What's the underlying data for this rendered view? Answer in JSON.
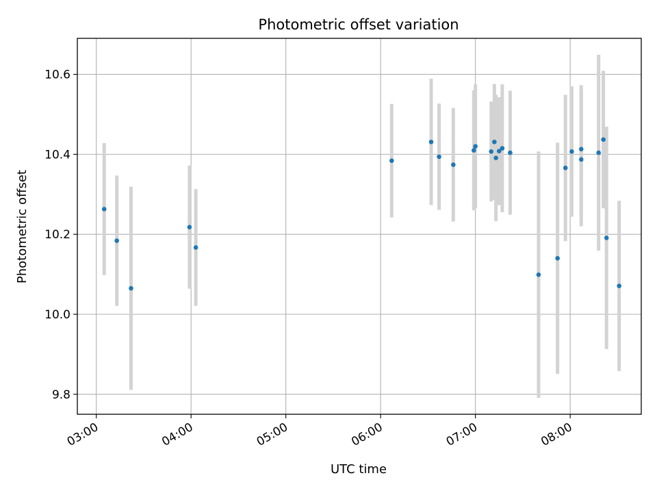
{
  "chart_data": {
    "type": "scatter",
    "title": "Photometric offset variation",
    "xlabel": "UTC time",
    "ylabel": "Photometric offset",
    "x_unit": "hours UTC",
    "xlim": [
      "02:48",
      "08:45"
    ],
    "ylim": [
      9.75,
      10.69
    ],
    "x_ticks": [
      "03:00",
      "04:00",
      "05:00",
      "06:00",
      "07:00",
      "08:00"
    ],
    "y_ticks": [
      "9.8",
      "10.0",
      "10.2",
      "10.4",
      "10.6"
    ],
    "grid": true,
    "colors": {
      "point": "#1f77b4",
      "errorbar": "#d3d3d3",
      "grid": "#b0b0b0"
    },
    "series": [
      {
        "points": [
          {
            "x": "03:05",
            "y": 10.263,
            "yerr": 0.165
          },
          {
            "x": "03:13",
            "y": 10.184,
            "yerr": 0.163
          },
          {
            "x": "03:22",
            "y": 10.065,
            "yerr": 0.254
          },
          {
            "x": "03:59",
            "y": 10.218,
            "yerr": 0.154
          },
          {
            "x": "04:03",
            "y": 10.167,
            "yerr": 0.146
          },
          {
            "x": "06:07",
            "y": 10.384,
            "yerr": 0.142
          },
          {
            "x": "06:32",
            "y": 10.431,
            "yerr": 0.158
          },
          {
            "x": "06:37",
            "y": 10.394,
            "yerr": 0.133
          },
          {
            "x": "06:46",
            "y": 10.374,
            "yerr": 0.142
          },
          {
            "x": "06:59",
            "y": 10.41,
            "yerr": 0.15
          },
          {
            "x": "07:00",
            "y": 10.42,
            "yerr": 0.155
          },
          {
            "x": "07:10",
            "y": 10.407,
            "yerr": 0.125
          },
          {
            "x": "07:12",
            "y": 10.431,
            "yerr": 0.145
          },
          {
            "x": "07:13",
            "y": 10.391,
            "yerr": 0.158
          },
          {
            "x": "07:15",
            "y": 10.408,
            "yerr": 0.135
          },
          {
            "x": "07:17",
            "y": 10.415,
            "yerr": 0.16
          },
          {
            "x": "07:22",
            "y": 10.404,
            "yerr": 0.155
          },
          {
            "x": "07:40",
            "y": 10.099,
            "yerr": 0.308
          },
          {
            "x": "07:52",
            "y": 10.14,
            "yerr": 0.289
          },
          {
            "x": "07:57",
            "y": 10.366,
            "yerr": 0.183
          },
          {
            "x": "08:01",
            "y": 10.407,
            "yerr": 0.163
          },
          {
            "x": "08:07",
            "y": 10.413,
            "yerr": 0.16
          },
          {
            "x": "08:07",
            "y": 10.387,
            "yerr": 0.167
          },
          {
            "x": "08:18",
            "y": 10.404,
            "yerr": 0.245
          },
          {
            "x": "08:21",
            "y": 10.437,
            "yerr": 0.172
          },
          {
            "x": "08:23",
            "y": 10.191,
            "yerr": 0.278
          },
          {
            "x": "08:31",
            "y": 10.071,
            "yerr": 0.213
          }
        ]
      }
    ]
  }
}
